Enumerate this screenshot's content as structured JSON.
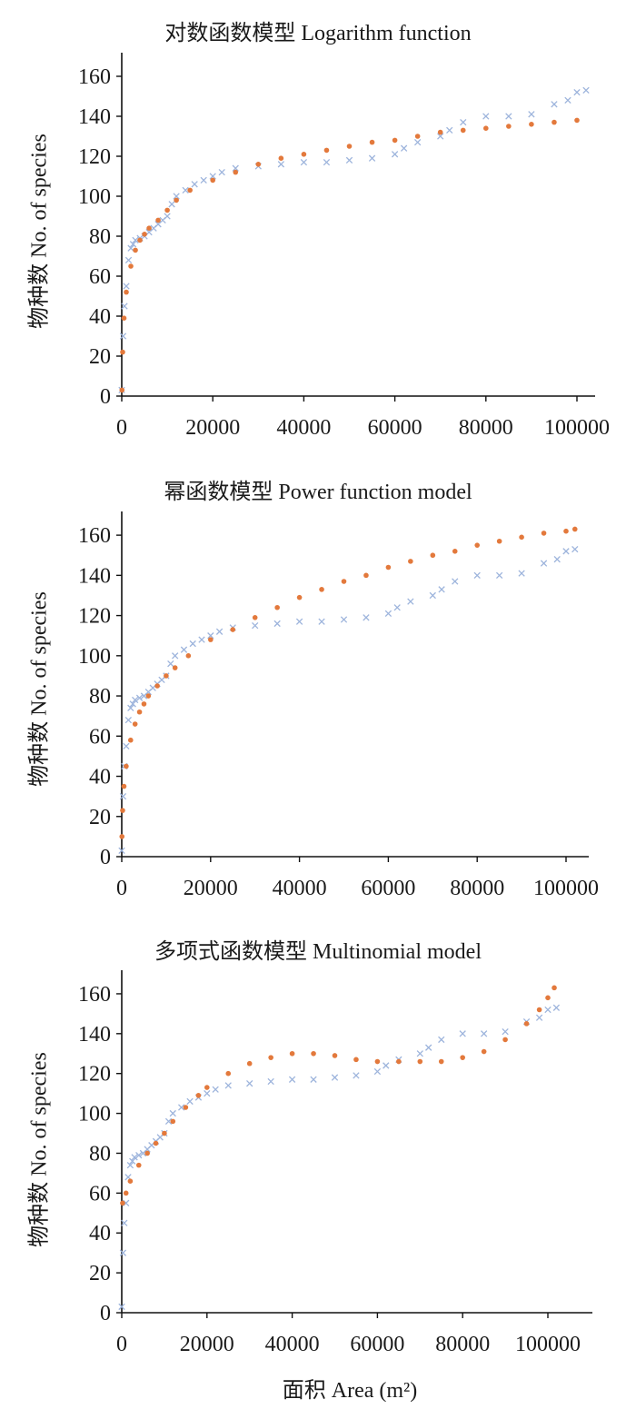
{
  "x_axis_label": "面积 Area (m²)",
  "y_axis_label": "物种数 No. of species",
  "chart_data": [
    {
      "type": "scatter",
      "title": "对数函数模型 Logarithm function",
      "xlabel": "面积 Area (m²)",
      "ylabel": "物种数 No. of species",
      "xlim": [
        0,
        104000
      ],
      "ylim": [
        0,
        170
      ],
      "xticks": [
        0,
        20000,
        40000,
        60000,
        80000,
        100000
      ],
      "yticks": [
        0,
        20,
        40,
        60,
        80,
        100,
        120,
        140,
        160
      ],
      "series": [
        {
          "marker": "x",
          "color": "#9db4dc",
          "x": [
            0,
            300,
            600,
            1000,
            1500,
            2000,
            2500,
            3000,
            4000,
            5000,
            6000,
            7000,
            8000,
            9000,
            10000,
            11000,
            12000,
            14000,
            16000,
            18000,
            20000,
            22000,
            25000,
            30000,
            35000,
            40000,
            45000,
            50000,
            55000,
            60000,
            62000,
            65000,
            70000,
            72000,
            75000,
            80000,
            85000,
            90000,
            95000,
            98000,
            100000,
            102000
          ],
          "y": [
            3,
            30,
            45,
            55,
            68,
            74,
            76,
            78,
            79,
            80,
            82,
            84,
            86,
            88,
            90,
            96,
            100,
            103,
            106,
            108,
            110,
            112,
            114,
            115,
            116,
            117,
            117,
            118,
            119,
            121,
            124,
            127,
            130,
            133,
            137,
            140,
            140,
            141,
            146,
            148,
            152,
            153
          ]
        },
        {
          "marker": "dot",
          "color": "#e3793c",
          "x": [
            50,
            200,
            500,
            1000,
            2000,
            3000,
            4000,
            5000,
            6000,
            8000,
            10000,
            12000,
            15000,
            20000,
            25000,
            30000,
            35000,
            40000,
            45000,
            50000,
            55000,
            60000,
            65000,
            70000,
            75000,
            80000,
            85000,
            90000,
            95000,
            100000
          ],
          "y": [
            3,
            22,
            39,
            52,
            65,
            73,
            78,
            81,
            84,
            88,
            93,
            98,
            103,
            108,
            112,
            116,
            119,
            121,
            123,
            125,
            127,
            128,
            130,
            132,
            133,
            134,
            135,
            136,
            137,
            138
          ]
        }
      ]
    },
    {
      "type": "scatter",
      "title": "幂函数模型 Power function model",
      "xlabel": "面积 Area (m²)",
      "ylabel": "物种数 No. of species",
      "xlim": [
        0,
        104000
      ],
      "ylim": [
        0,
        170
      ],
      "xticks": [
        0,
        20000,
        40000,
        60000,
        80000,
        100000
      ],
      "yticks": [
        0,
        20,
        40,
        60,
        80,
        100,
        120,
        140,
        160
      ],
      "series": [
        {
          "marker": "x",
          "color": "#9db4dc",
          "x": [
            0,
            300,
            600,
            1000,
            1500,
            2000,
            2500,
            3000,
            4000,
            5000,
            6000,
            7000,
            8000,
            9000,
            10000,
            11000,
            12000,
            14000,
            16000,
            18000,
            20000,
            22000,
            25000,
            30000,
            35000,
            40000,
            45000,
            50000,
            55000,
            60000,
            62000,
            65000,
            70000,
            72000,
            75000,
            80000,
            85000,
            90000,
            95000,
            98000,
            100000,
            102000
          ],
          "y": [
            3,
            30,
            45,
            55,
            68,
            74,
            76,
            78,
            79,
            80,
            82,
            84,
            86,
            88,
            90,
            96,
            100,
            103,
            106,
            108,
            110,
            112,
            114,
            115,
            116,
            117,
            117,
            118,
            119,
            121,
            124,
            127,
            130,
            133,
            137,
            140,
            140,
            141,
            146,
            148,
            152,
            153
          ]
        },
        {
          "marker": "dot",
          "color": "#e3793c",
          "x": [
            50,
            200,
            500,
            1000,
            2000,
            3000,
            4000,
            5000,
            6000,
            8000,
            10000,
            12000,
            15000,
            20000,
            25000,
            30000,
            35000,
            40000,
            45000,
            50000,
            55000,
            60000,
            65000,
            70000,
            75000,
            80000,
            85000,
            90000,
            95000,
            100000,
            102000
          ],
          "y": [
            10,
            23,
            35,
            45,
            58,
            66,
            72,
            76,
            80,
            85,
            90,
            94,
            100,
            108,
            113,
            119,
            124,
            129,
            133,
            137,
            140,
            144,
            147,
            150,
            152,
            155,
            157,
            159,
            161,
            162,
            163
          ]
        }
      ]
    },
    {
      "type": "scatter",
      "title": "多项式函数模型 Multinomial model",
      "xlabel": "面积 Area (m²)",
      "ylabel": "物种数 No. of species",
      "xlim": [
        0,
        110000
      ],
      "ylim": [
        0,
        170
      ],
      "xticks": [
        0,
        20000,
        40000,
        60000,
        80000,
        100000
      ],
      "yticks": [
        0,
        20,
        40,
        60,
        80,
        100,
        120,
        140,
        160
      ],
      "series": [
        {
          "marker": "x",
          "color": "#9db4dc",
          "x": [
            0,
            300,
            600,
            1000,
            1500,
            2000,
            2500,
            3000,
            4000,
            5000,
            6000,
            7000,
            8000,
            9000,
            10000,
            11000,
            12000,
            14000,
            16000,
            18000,
            20000,
            22000,
            25000,
            30000,
            35000,
            40000,
            45000,
            50000,
            55000,
            60000,
            62000,
            65000,
            70000,
            72000,
            75000,
            80000,
            85000,
            90000,
            95000,
            98000,
            100000,
            102000
          ],
          "y": [
            3,
            30,
            45,
            55,
            68,
            74,
            76,
            78,
            79,
            80,
            82,
            84,
            86,
            88,
            90,
            96,
            100,
            103,
            106,
            108,
            110,
            112,
            114,
            115,
            116,
            117,
            117,
            118,
            119,
            121,
            124,
            127,
            130,
            133,
            137,
            140,
            140,
            141,
            146,
            148,
            152,
            153
          ]
        },
        {
          "marker": "dot",
          "color": "#e3793c",
          "x": [
            200,
            1000,
            2000,
            4000,
            6000,
            8000,
            10000,
            12000,
            15000,
            18000,
            20000,
            25000,
            30000,
            35000,
            40000,
            45000,
            50000,
            55000,
            60000,
            65000,
            70000,
            75000,
            80000,
            85000,
            90000,
            95000,
            98000,
            100000,
            101500
          ],
          "y": [
            55,
            60,
            66,
            74,
            80,
            85,
            90,
            96,
            103,
            109,
            113,
            120,
            125,
            128,
            130,
            130,
            129,
            127,
            126,
            126,
            126,
            126,
            128,
            131,
            137,
            145,
            152,
            158,
            163
          ]
        }
      ]
    }
  ]
}
